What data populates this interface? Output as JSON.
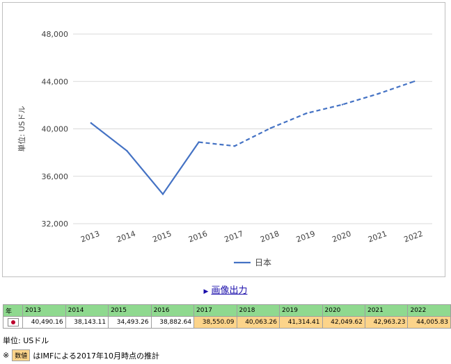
{
  "chart_data": {
    "type": "line",
    "categories": [
      "2013",
      "2014",
      "2015",
      "2016",
      "2017",
      "2018",
      "2019",
      "2020",
      "2021",
      "2022"
    ],
    "series": [
      {
        "name": "日本",
        "values": [
          40490.16,
          38143.11,
          34493.26,
          38882.64,
          38550.09,
          40063.26,
          41314.41,
          42049.62,
          42963.23,
          44005.83
        ],
        "estimated_from": "2016",
        "color": "#4472c4"
      }
    ],
    "ylabel": "単位: USドル",
    "ylim": [
      32000,
      48000
    ],
    "yticks": [
      "32,000",
      "36,000",
      "40,000",
      "44,000",
      "48,000"
    ],
    "grid": true,
    "legend": "bottom"
  },
  "image_output_link": "画像出力",
  "table": {
    "corner_header": "年",
    "years": [
      "2013",
      "2014",
      "2015",
      "2016",
      "2017",
      "2018",
      "2019",
      "2020",
      "2021",
      "2022"
    ],
    "row_values": [
      "40,490.16",
      "38,143.11",
      "34,493.26",
      "38,882.64",
      "38,550.09",
      "40,063.26",
      "41,314.41",
      "42,049.62",
      "42,963.23",
      "44,005.83"
    ],
    "estimated": [
      false,
      false,
      false,
      false,
      true,
      true,
      true,
      true,
      true,
      true
    ]
  },
  "notes": {
    "unit": "単位: USドル",
    "prefix": "※",
    "badge": "数値",
    "estimate": "はIMFによる2017年10月時点の推計"
  }
}
